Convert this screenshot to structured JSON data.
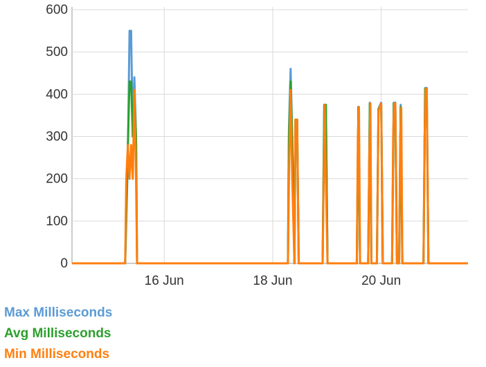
{
  "chart_data": {
    "type": "line",
    "x_unit": "day",
    "x_ticks": [
      {
        "x": 16,
        "label": "16 Jun"
      },
      {
        "x": 18,
        "label": "18 Jun"
      },
      {
        "x": 20,
        "label": "20 Jun"
      }
    ],
    "xlim": [
      14.3,
      21.6
    ],
    "ylim": [
      0,
      600
    ],
    "yticks": [
      0,
      100,
      200,
      300,
      400,
      500,
      600
    ],
    "grid": true,
    "legend_position": "bottom-left",
    "series": [
      {
        "name": "Max Milliseconds",
        "color": "#5b9bd5",
        "points": [
          [
            14.3,
            0
          ],
          [
            15.28,
            0
          ],
          [
            15.33,
            250
          ],
          [
            15.36,
            550
          ],
          [
            15.39,
            550
          ],
          [
            15.42,
            300
          ],
          [
            15.45,
            440
          ],
          [
            15.48,
            300
          ],
          [
            15.5,
            0
          ],
          [
            18.28,
            0
          ],
          [
            18.3,
            320
          ],
          [
            18.33,
            460
          ],
          [
            18.36,
            300
          ],
          [
            18.4,
            0
          ],
          [
            18.42,
            340
          ],
          [
            18.45,
            340
          ],
          [
            18.48,
            0
          ],
          [
            18.92,
            0
          ],
          [
            18.95,
            375
          ],
          [
            18.98,
            375
          ],
          [
            19.01,
            0
          ],
          [
            19.55,
            0
          ],
          [
            19.58,
            370
          ],
          [
            19.61,
            0
          ],
          [
            19.76,
            0
          ],
          [
            19.79,
            380
          ],
          [
            19.82,
            0
          ],
          [
            19.92,
            0
          ],
          [
            19.95,
            365
          ],
          [
            19.98,
            375
          ],
          [
            20.0,
            380
          ],
          [
            20.03,
            0
          ],
          [
            20.2,
            0
          ],
          [
            20.23,
            380
          ],
          [
            20.26,
            380
          ],
          [
            20.29,
            0
          ],
          [
            20.33,
            0
          ],
          [
            20.36,
            375
          ],
          [
            20.39,
            0
          ],
          [
            20.78,
            0
          ],
          [
            20.81,
            415
          ],
          [
            20.84,
            415
          ],
          [
            20.87,
            0
          ],
          [
            21.6,
            0
          ]
        ]
      },
      {
        "name": "Avg Milliseconds",
        "color": "#2ca02c",
        "points": [
          [
            14.3,
            0
          ],
          [
            15.28,
            0
          ],
          [
            15.33,
            280
          ],
          [
            15.36,
            430
          ],
          [
            15.39,
            430
          ],
          [
            15.42,
            300
          ],
          [
            15.45,
            400
          ],
          [
            15.48,
            300
          ],
          [
            15.5,
            0
          ],
          [
            18.28,
            0
          ],
          [
            18.3,
            300
          ],
          [
            18.33,
            430
          ],
          [
            18.36,
            300
          ],
          [
            18.4,
            0
          ],
          [
            18.42,
            340
          ],
          [
            18.45,
            340
          ],
          [
            18.48,
            0
          ],
          [
            18.92,
            0
          ],
          [
            18.95,
            375
          ],
          [
            18.98,
            375
          ],
          [
            19.01,
            0
          ],
          [
            19.55,
            0
          ],
          [
            19.58,
            370
          ],
          [
            19.61,
            0
          ],
          [
            19.76,
            0
          ],
          [
            19.79,
            378
          ],
          [
            19.82,
            0
          ],
          [
            19.92,
            0
          ],
          [
            19.95,
            365
          ],
          [
            19.98,
            372
          ],
          [
            20.0,
            378
          ],
          [
            20.03,
            0
          ],
          [
            20.2,
            0
          ],
          [
            20.23,
            378
          ],
          [
            20.26,
            378
          ],
          [
            20.29,
            0
          ],
          [
            20.33,
            0
          ],
          [
            20.36,
            370
          ],
          [
            20.39,
            0
          ],
          [
            20.78,
            0
          ],
          [
            20.81,
            413
          ],
          [
            20.84,
            413
          ],
          [
            20.87,
            0
          ],
          [
            21.6,
            0
          ]
        ]
      },
      {
        "name": "Min Milliseconds",
        "color": "#ff7f0e",
        "points": [
          [
            14.3,
            0
          ],
          [
            15.28,
            0
          ],
          [
            15.3,
            200
          ],
          [
            15.33,
            280
          ],
          [
            15.36,
            200
          ],
          [
            15.39,
            280
          ],
          [
            15.42,
            200
          ],
          [
            15.45,
            410
          ],
          [
            15.48,
            200
          ],
          [
            15.5,
            0
          ],
          [
            18.28,
            0
          ],
          [
            18.3,
            200
          ],
          [
            18.33,
            410
          ],
          [
            18.36,
            200
          ],
          [
            18.4,
            0
          ],
          [
            18.42,
            340
          ],
          [
            18.45,
            340
          ],
          [
            18.48,
            0
          ],
          [
            18.92,
            0
          ],
          [
            18.94,
            200
          ],
          [
            18.96,
            375
          ],
          [
            18.98,
            200
          ],
          [
            19.01,
            0
          ],
          [
            19.55,
            0
          ],
          [
            19.57,
            300
          ],
          [
            19.59,
            370
          ],
          [
            19.61,
            0
          ],
          [
            19.76,
            0
          ],
          [
            19.78,
            250
          ],
          [
            19.8,
            378
          ],
          [
            19.82,
            0
          ],
          [
            19.92,
            0
          ],
          [
            19.95,
            360
          ],
          [
            19.98,
            372
          ],
          [
            20.0,
            378
          ],
          [
            20.03,
            0
          ],
          [
            20.2,
            0
          ],
          [
            20.22,
            300
          ],
          [
            20.24,
            378
          ],
          [
            20.26,
            378
          ],
          [
            20.29,
            0
          ],
          [
            20.33,
            0
          ],
          [
            20.35,
            300
          ],
          [
            20.37,
            368
          ],
          [
            20.39,
            0
          ],
          [
            20.78,
            0
          ],
          [
            20.8,
            300
          ],
          [
            20.82,
            413
          ],
          [
            20.84,
            413
          ],
          [
            20.87,
            0
          ],
          [
            21.6,
            0
          ]
        ]
      }
    ]
  },
  "legend": {
    "items": [
      {
        "label": "Max Milliseconds",
        "color": "#5b9bd5"
      },
      {
        "label": "Avg Milliseconds",
        "color": "#2ca02c"
      },
      {
        "label": "Min Milliseconds",
        "color": "#ff7f0e"
      }
    ]
  }
}
